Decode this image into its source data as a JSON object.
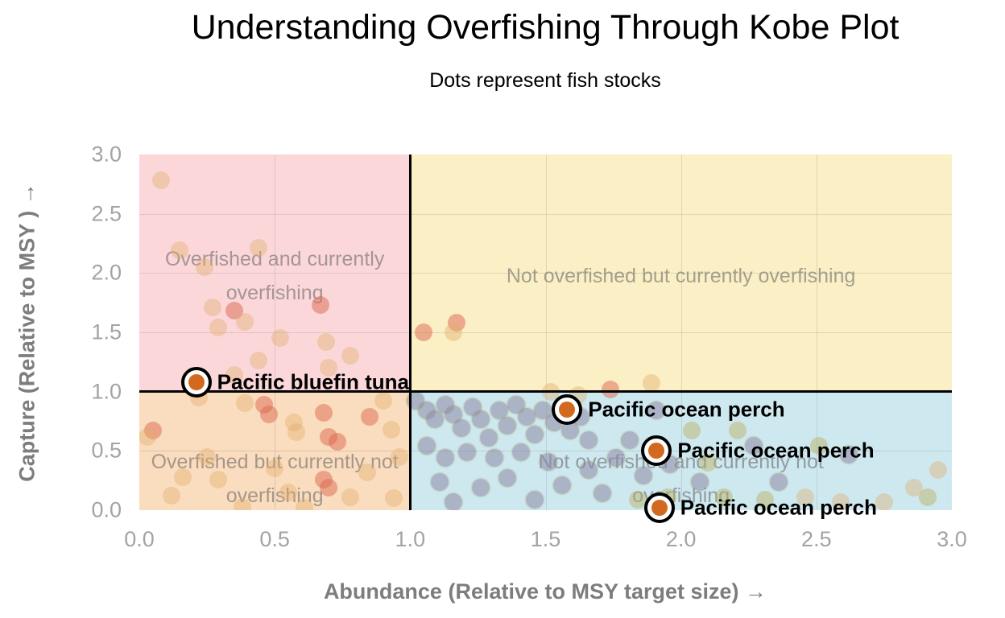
{
  "chart_data": {
    "type": "scatter",
    "title": "Understanding Overfishing Through Kobe Plot",
    "subtitle": "Dots represent fish stocks",
    "xlabel": "Abundance (Relative to MSY target size) →",
    "ylabel": "Capture (Relative to MSY ) →",
    "xlim": [
      0,
      3
    ],
    "ylim": [
      0,
      3
    ],
    "x_tick_labels": [
      "0.0",
      "0.5",
      "1.0",
      "1.5",
      "2.0",
      "2.5",
      "3.0"
    ],
    "y_tick_labels": [
      "3.0",
      "2.5",
      "2.0",
      "1.5",
      "1.0",
      "0.5",
      "0.0"
    ],
    "grid": "on",
    "reference_lines": {
      "vertical_x": 1.0,
      "horizontal_y": 1.0,
      "color": "#000000"
    },
    "quadrants": [
      {
        "position": "top-left",
        "label": "Overfished and currently overfishing",
        "color": "#FBD7D9"
      },
      {
        "position": "top-right",
        "label": "Not overfished but currently overfishing",
        "color": "#FAEFC5"
      },
      {
        "position": "bottom-left",
        "label": "Overfished but currently not overfishing",
        "color": "#FADCBE"
      },
      {
        "position": "bottom-right",
        "label": "Not overfished and currently not overfishing",
        "color": "#CEE8F0"
      }
    ],
    "labeled_points": [
      {
        "name": "Pacific bluefin tuna",
        "x": 0.21,
        "y": 1.08
      },
      {
        "name": "Pacific ocean perch",
        "x": 1.58,
        "y": 0.85
      },
      {
        "name": "Pacific ocean perch",
        "x": 1.91,
        "y": 0.5
      },
      {
        "name": "Pacific ocean perch",
        "x": 1.92,
        "y": 0.02
      }
    ],
    "background_points": [
      [
        0.08,
        2.78,
        "tan"
      ],
      [
        0.15,
        2.19,
        "tan"
      ],
      [
        0.24,
        2.05,
        "tan"
      ],
      [
        0.44,
        2.21,
        "tan"
      ],
      [
        0.27,
        1.71,
        "tan"
      ],
      [
        0.35,
        1.68,
        "red"
      ],
      [
        0.39,
        1.59,
        "tan"
      ],
      [
        0.29,
        1.54,
        "tan"
      ],
      [
        0.52,
        1.45,
        "tan"
      ],
      [
        0.67,
        1.73,
        "red"
      ],
      [
        0.69,
        1.42,
        "tan"
      ],
      [
        0.78,
        1.3,
        "tan"
      ],
      [
        0.7,
        1.2,
        "tan"
      ],
      [
        0.35,
        1.14,
        "tan"
      ],
      [
        0.44,
        1.26,
        "tan"
      ],
      [
        1.05,
        1.5,
        "red"
      ],
      [
        1.17,
        1.58,
        "red"
      ],
      [
        1.16,
        1.5,
        "tan"
      ],
      [
        1.89,
        1.07,
        "tan"
      ],
      [
        1.74,
        1.02,
        "red"
      ],
      [
        1.52,
        1.0,
        "tan"
      ],
      [
        0.05,
        0.67,
        "red"
      ],
      [
        0.03,
        0.62,
        "tan"
      ],
      [
        0.22,
        0.95,
        "tan"
      ],
      [
        0.39,
        0.9,
        "tan"
      ],
      [
        0.46,
        0.89,
        "red"
      ],
      [
        0.48,
        0.81,
        "red"
      ],
      [
        0.57,
        0.74,
        "tan"
      ],
      [
        0.58,
        0.66,
        "tan"
      ],
      [
        0.68,
        0.82,
        "red"
      ],
      [
        0.7,
        0.62,
        "red"
      ],
      [
        0.73,
        0.58,
        "red"
      ],
      [
        0.85,
        0.79,
        "red"
      ],
      [
        0.9,
        0.92,
        "tan"
      ],
      [
        0.93,
        0.68,
        "tan"
      ],
      [
        0.16,
        0.28,
        "tan"
      ],
      [
        0.29,
        0.26,
        "tan"
      ],
      [
        0.68,
        0.26,
        "red"
      ],
      [
        0.7,
        0.19,
        "red"
      ],
      [
        0.78,
        0.11,
        "tan"
      ],
      [
        0.94,
        0.1,
        "tan"
      ],
      [
        0.38,
        0.03,
        "tan"
      ],
      [
        0.61,
        0.02,
        "tan"
      ],
      [
        0.25,
        0.45,
        "tan"
      ],
      [
        0.5,
        0.35,
        "tan"
      ],
      [
        0.84,
        0.32,
        "tan"
      ],
      [
        0.12,
        0.12,
        "tan"
      ],
      [
        0.96,
        0.45,
        "tan"
      ],
      [
        0.55,
        0.15,
        "tan"
      ],
      [
        1.02,
        0.92,
        "purple"
      ],
      [
        1.06,
        0.84,
        "purple"
      ],
      [
        1.09,
        0.77,
        "purple"
      ],
      [
        1.13,
        0.89,
        "purple"
      ],
      [
        1.16,
        0.81,
        "purple"
      ],
      [
        1.19,
        0.69,
        "purple"
      ],
      [
        1.23,
        0.87,
        "purple"
      ],
      [
        1.26,
        0.77,
        "purple"
      ],
      [
        1.29,
        0.61,
        "purple"
      ],
      [
        1.33,
        0.84,
        "purple"
      ],
      [
        1.36,
        0.71,
        "purple"
      ],
      [
        1.39,
        0.89,
        "purple"
      ],
      [
        1.43,
        0.79,
        "purple"
      ],
      [
        1.46,
        0.64,
        "purple"
      ],
      [
        1.49,
        0.84,
        "purple"
      ],
      [
        1.53,
        0.74,
        "purple"
      ],
      [
        1.56,
        0.87,
        "purple"
      ],
      [
        1.59,
        0.67,
        "purple"
      ],
      [
        1.63,
        0.79,
        "purple"
      ],
      [
        1.66,
        0.59,
        "purple"
      ],
      [
        1.06,
        0.54,
        "purple"
      ],
      [
        1.13,
        0.44,
        "purple"
      ],
      [
        1.21,
        0.49,
        "purple"
      ],
      [
        1.31,
        0.44,
        "purple"
      ],
      [
        1.41,
        0.49,
        "purple"
      ],
      [
        1.51,
        0.41,
        "purple"
      ],
      [
        1.11,
        0.24,
        "purple"
      ],
      [
        1.26,
        0.19,
        "purple"
      ],
      [
        1.36,
        0.27,
        "purple"
      ],
      [
        1.56,
        0.21,
        "purple"
      ],
      [
        1.66,
        0.34,
        "purple"
      ],
      [
        1.76,
        0.44,
        "purple"
      ],
      [
        1.81,
        0.59,
        "purple"
      ],
      [
        1.86,
        0.29,
        "purple"
      ],
      [
        1.71,
        0.14,
        "purple"
      ],
      [
        1.46,
        0.09,
        "purple"
      ],
      [
        1.16,
        0.07,
        "purple"
      ],
      [
        1.96,
        0.39,
        "purple"
      ],
      [
        2.07,
        0.24,
        "purple"
      ],
      [
        2.27,
        0.54,
        "purple"
      ],
      [
        2.36,
        0.24,
        "purple"
      ],
      [
        2.62,
        0.47,
        "purple"
      ],
      [
        1.91,
        0.84,
        "purple"
      ],
      [
        1.62,
        0.97,
        "tan"
      ],
      [
        2.1,
        0.4,
        "olive"
      ],
      [
        2.16,
        0.11,
        "olive"
      ],
      [
        2.46,
        0.11,
        "tan"
      ],
      [
        2.51,
        0.54,
        "olive"
      ],
      [
        2.86,
        0.19,
        "tan"
      ],
      [
        2.59,
        0.07,
        "tan"
      ],
      [
        2.04,
        0.67,
        "olive"
      ],
      [
        1.95,
        0.11,
        "olive"
      ],
      [
        1.84,
        0.09,
        "olive"
      ],
      [
        2.31,
        0.09,
        "olive"
      ],
      [
        2.75,
        0.07,
        "tan"
      ],
      [
        2.91,
        0.11,
        "olive"
      ],
      [
        2.95,
        0.34,
        "tan"
      ],
      [
        2.21,
        0.67,
        "olive"
      ]
    ],
    "legend_position": "none"
  },
  "colors": {
    "marker_fill": "#D2691E",
    "marker_ring": "#FFFFFF",
    "marker_outline": "#000000",
    "grid_line": "rgba(90,90,90,0.16)",
    "divider_line": "#000000",
    "quadrant_label_text": "rgba(95,95,95,0.55)",
    "tick_text": "#A3A3A3",
    "axis_title_text": "#7D7D7D",
    "title_text": "#000000",
    "dot_colors": {
      "tan": "rgba(226,172,104,0.40)",
      "red": "rgba(219,104,80,0.50)",
      "purple": "rgba(142,134,164,0.55)",
      "olive": "rgba(186,176,88,0.45)"
    }
  }
}
